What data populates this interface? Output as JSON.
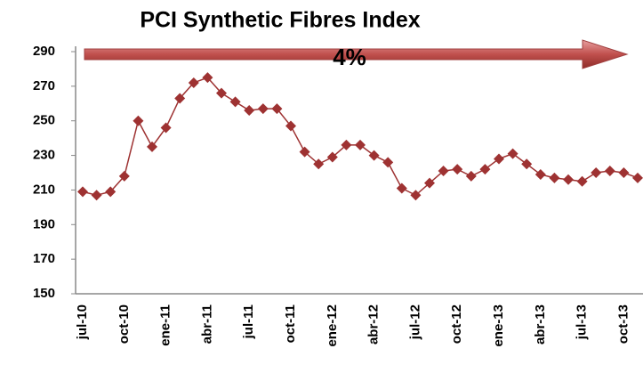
{
  "chart_data": {
    "type": "line",
    "title": "PCI Synthetic Fibres Index",
    "annotation": "4%",
    "categories": [
      "jul-10",
      null,
      null,
      "oct-10",
      null,
      null,
      "ene-11",
      null,
      null,
      "abr-11",
      null,
      null,
      "jul-11",
      null,
      null,
      "oct-11",
      null,
      null,
      "ene-12",
      null,
      null,
      "abr-12",
      null,
      null,
      "jul-12",
      null,
      null,
      "oct-12",
      null,
      null,
      "ene-13",
      null,
      null,
      "abr-13",
      null,
      null,
      "jul-13",
      null,
      null,
      "oct-13",
      null
    ],
    "values": [
      209,
      207,
      209,
      218,
      250,
      235,
      246,
      263,
      272,
      275,
      266,
      261,
      256,
      257,
      257,
      247,
      232,
      225,
      229,
      236,
      236,
      230,
      226,
      211,
      207,
      214,
      221,
      222,
      218,
      222,
      228,
      231,
      225,
      219,
      217,
      216,
      215,
      220,
      221,
      220,
      217
    ],
    "color": "#9e3232",
    "ylim": [
      150,
      290
    ],
    "yticks": [
      150,
      170,
      190,
      210,
      230,
      250,
      270,
      290
    ],
    "grid": false
  }
}
